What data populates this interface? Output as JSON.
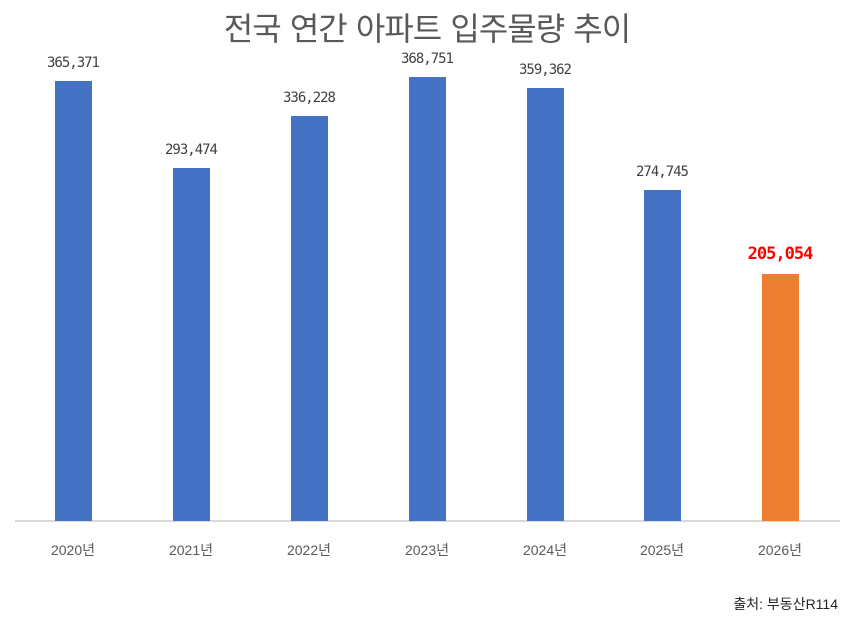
{
  "chart_data": {
    "type": "bar",
    "title": "전국 연간 아파트 입주물량 추이",
    "categories": [
      "2020년",
      "2021년",
      "2022년",
      "2023년",
      "2024년",
      "2025년",
      "2026년"
    ],
    "values": [
      365371,
      293474,
      336228,
      368751,
      359362,
      274745,
      205054
    ],
    "value_labels": [
      "365,371",
      "293,474",
      "336,228",
      "368,751",
      "359,362",
      "274,745",
      "205,054"
    ],
    "series": [
      {
        "name": "입주물량",
        "values": [
          365371,
          293474,
          336228,
          368751,
          359362,
          274745,
          205054
        ]
      }
    ],
    "bar_colors": [
      "#4472c4",
      "#4472c4",
      "#4472c4",
      "#4472c4",
      "#4472c4",
      "#4472c4",
      "#ed7d31"
    ],
    "highlight_index": 6,
    "highlight_label_color": "#ff0000",
    "xlabel": "",
    "ylabel": "",
    "ylim": [
      0,
      400000
    ],
    "grid": false,
    "legend": "none",
    "annotations": [
      "출처: 부동산R114"
    ]
  },
  "source": "출처: 부동산R114"
}
